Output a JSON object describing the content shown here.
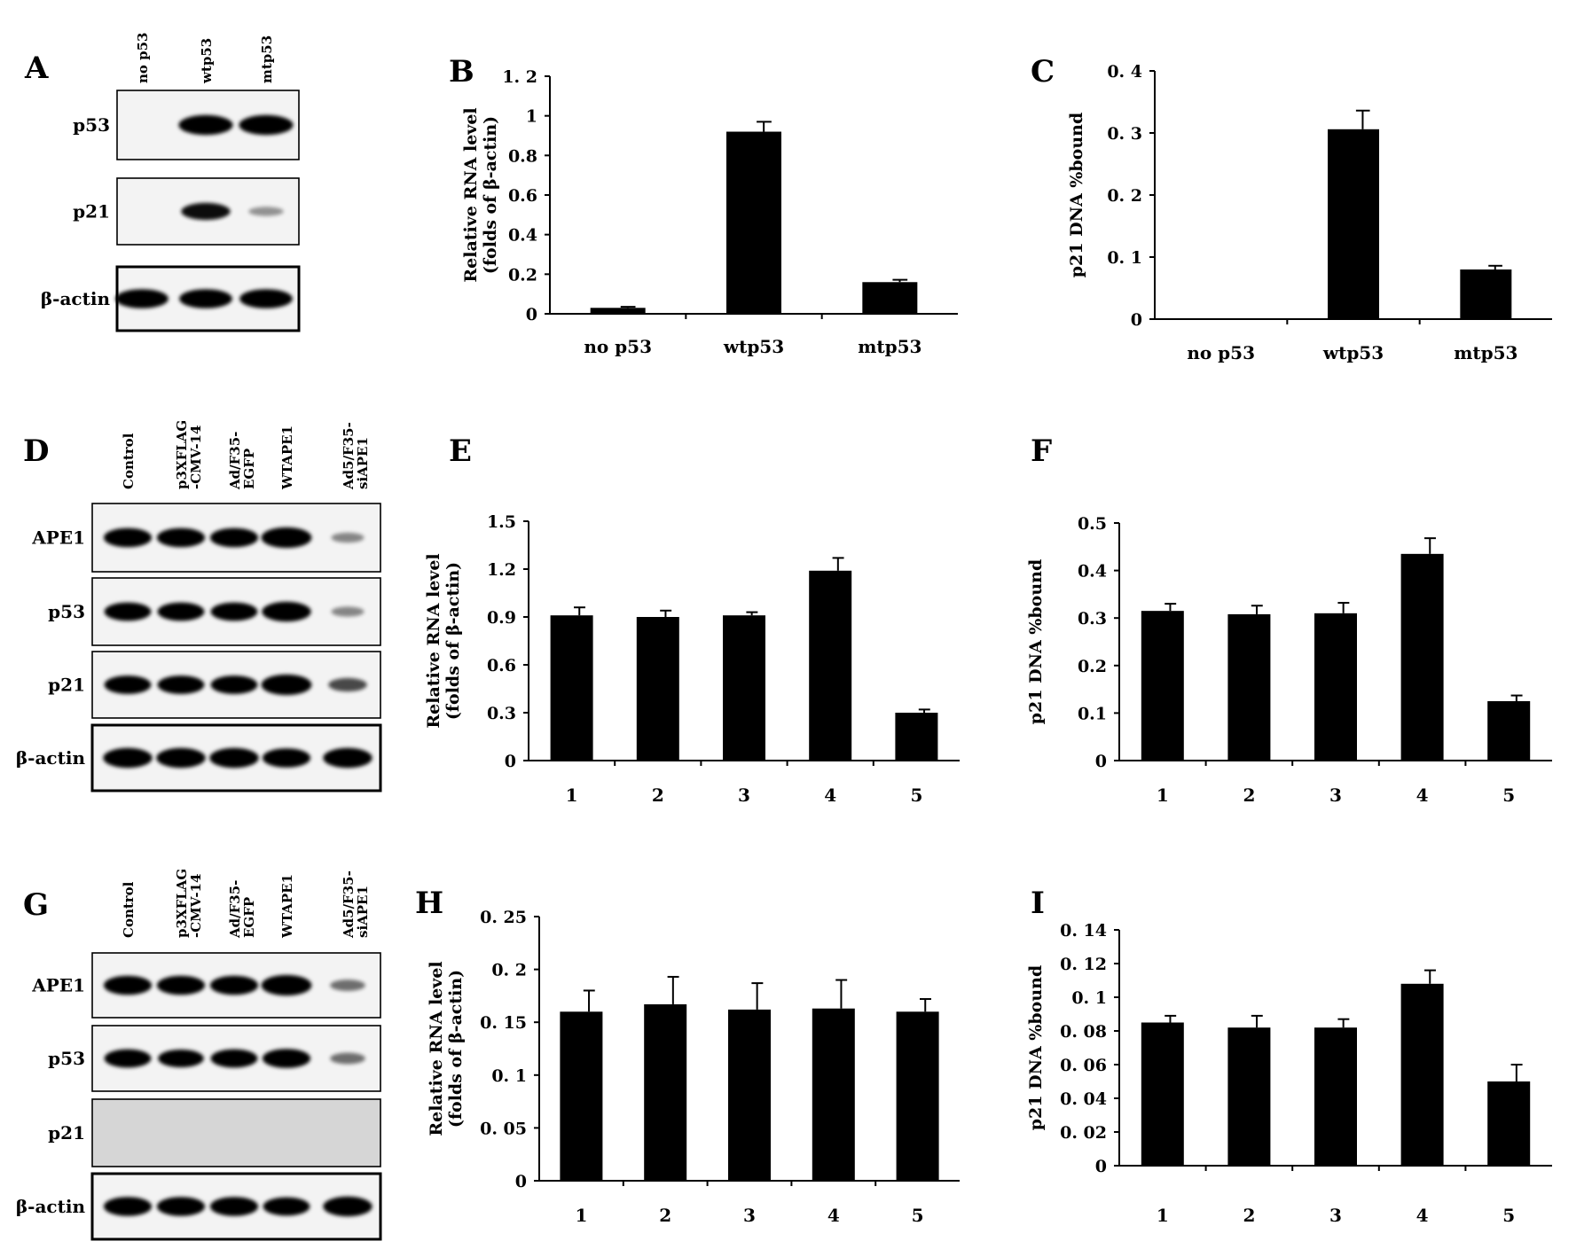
{
  "blots": [
    {
      "label": "A",
      "lanes": [
        "no p53",
        "wtp53",
        "mtp53"
      ],
      "rows": [
        {
          "name": "p53",
          "bands": [
            0,
            0.9,
            0.9
          ]
        },
        {
          "name": "p21",
          "bands": [
            0,
            0.7,
            0.15
          ]
        },
        {
          "name": "β-actin",
          "bands": [
            0.85,
            0.85,
            0.85
          ]
        }
      ]
    },
    {
      "label": "D",
      "lanes": [
        "Control",
        "p3XFLAG\n-CMV-14",
        "Ad/F35-\nEGFP",
        "WTAPE1",
        "Ad5/F35-\nsiAPE1"
      ],
      "rows": [
        {
          "name": "APE1",
          "bands": [
            0.85,
            0.85,
            0.85,
            0.95,
            0.2
          ]
        },
        {
          "name": "p53",
          "bands": [
            0.8,
            0.8,
            0.8,
            0.9,
            0.2
          ]
        },
        {
          "name": "p21",
          "bands": [
            0.8,
            0.8,
            0.8,
            0.95,
            0.45
          ]
        },
        {
          "name": "β-actin",
          "bands": [
            0.9,
            0.9,
            0.9,
            0.85,
            0.9
          ]
        }
      ]
    },
    {
      "label": "G",
      "lanes": [
        "Control",
        "p3XFLAG\n-CMV-14",
        "Ad/F35-\nEGFP",
        "WTAPE1",
        "Ad5/F35-\nsiAPE1"
      ],
      "rows": [
        {
          "name": "APE1",
          "bands": [
            0.85,
            0.85,
            0.85,
            0.95,
            0.3
          ]
        },
        {
          "name": "p53",
          "bands": [
            0.8,
            0.75,
            0.8,
            0.85,
            0.3
          ]
        },
        {
          "name": "p21",
          "bands": [
            0,
            0,
            0,
            0,
            0
          ]
        },
        {
          "name": "β-actin",
          "bands": [
            0.85,
            0.85,
            0.85,
            0.8,
            0.9
          ]
        }
      ]
    }
  ],
  "chart_data": [
    {
      "label": "B",
      "type": "bar",
      "categories": [
        "no p53",
        "wtp53",
        "mtp53"
      ],
      "values": [
        0.03,
        0.92,
        0.16
      ],
      "errors": [
        0.005,
        0.05,
        0.012
      ],
      "ylabel": "Relative RNA level\n(folds of β-actin)",
      "ylim": [
        0,
        1.2
      ],
      "yticks": [
        "0",
        "0.2",
        "0.4",
        "0.6",
        "0.8",
        "1",
        "1. 2"
      ]
    },
    {
      "label": "C",
      "type": "bar",
      "categories": [
        "no p53",
        "wtp53",
        "mtp53"
      ],
      "values": [
        0,
        0.306,
        0.08
      ],
      "errors": [
        0,
        0.03,
        0.006
      ],
      "ylabel": "p21 DNA %bound",
      "ylim": [
        0,
        0.4
      ],
      "yticks": [
        "0",
        "0. 1",
        "0. 2",
        "0. 3",
        "0. 4"
      ]
    },
    {
      "label": "E",
      "type": "bar",
      "categories": [
        "1",
        "2",
        "3",
        "4",
        "5"
      ],
      "values": [
        0.91,
        0.9,
        0.91,
        1.19,
        0.3
      ],
      "errors": [
        0.05,
        0.04,
        0.02,
        0.08,
        0.02
      ],
      "ylabel": "Relative RNA level\n(folds of β-actin)",
      "ylim": [
        0,
        1.5
      ],
      "yticks": [
        "0",
        "0.3",
        "0.6",
        "0.9",
        "1.2",
        "1.5"
      ]
    },
    {
      "label": "F",
      "type": "bar",
      "categories": [
        "1",
        "2",
        "3",
        "4",
        "5"
      ],
      "values": [
        0.315,
        0.308,
        0.31,
        0.435,
        0.125
      ],
      "errors": [
        0.015,
        0.018,
        0.022,
        0.033,
        0.012
      ],
      "ylabel": "p21 DNA %bound",
      "ylim": [
        0,
        0.5
      ],
      "yticks": [
        "0",
        "0.1",
        "0.2",
        "0.3",
        "0.4",
        "0.5"
      ]
    },
    {
      "label": "H",
      "type": "bar",
      "categories": [
        "1",
        "2",
        "3",
        "4",
        "5"
      ],
      "values": [
        0.16,
        0.167,
        0.162,
        0.163,
        0.16
      ],
      "errors": [
        0.02,
        0.026,
        0.025,
        0.027,
        0.012
      ],
      "ylabel": "Relative RNA level\n(folds of β-actin)",
      "ylim": [
        0,
        0.25
      ],
      "yticks": [
        "0",
        "0. 05",
        "0. 1",
        "0. 15",
        "0. 2",
        "0. 25"
      ]
    },
    {
      "label": "I",
      "type": "bar",
      "categories": [
        "1",
        "2",
        "3",
        "4",
        "5"
      ],
      "values": [
        0.085,
        0.082,
        0.082,
        0.108,
        0.05
      ],
      "errors": [
        0.004,
        0.007,
        0.005,
        0.008,
        0.01
      ],
      "ylabel": "p21 DNA %bound",
      "ylim": [
        0,
        0.14
      ],
      "yticks": [
        "0",
        "0. 02",
        "0. 04",
        "0. 06",
        "0. 08",
        "0. 1",
        "0. 12",
        "0. 14"
      ]
    }
  ]
}
